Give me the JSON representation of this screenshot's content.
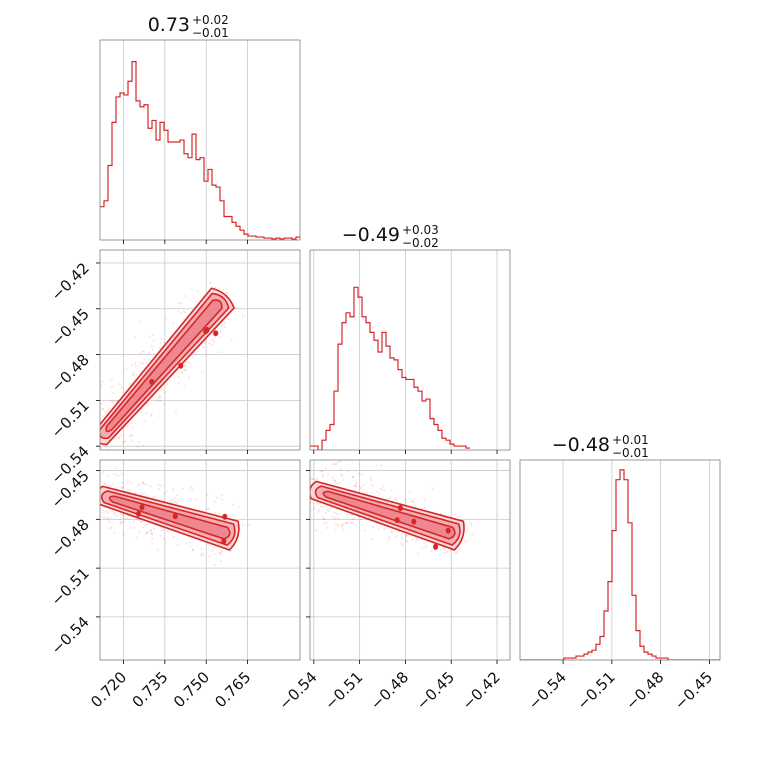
{
  "chart_data": {
    "type": "corner",
    "colors": {
      "line": "#d62728",
      "fill": "#f4a6aa",
      "fill_outer": "#fad4d6"
    },
    "grid": true,
    "parameters": [
      {
        "title_value": "0.73",
        "title_plus": "+0.02",
        "title_minus": "−0.01",
        "range": [
          0.7115,
          0.784
        ],
        "ticks": [
          0.72,
          0.735,
          0.75,
          0.765
        ],
        "tick_labels": [
          "0.720",
          "0.735",
          "0.750",
          "0.765"
        ]
      },
      {
        "title_value": "−0.49",
        "title_plus": "+0.03",
        "title_minus": "−0.02",
        "range": [
          -0.5425,
          -0.4115
        ],
        "ticks": [
          -0.54,
          -0.51,
          -0.48,
          -0.45,
          -0.42
        ],
        "tick_labels": [
          "−0.54",
          "−0.51",
          "−0.48",
          "−0.45",
          "−0.42"
        ]
      },
      {
        "title_value": "−0.48",
        "title_plus": "+0.01",
        "title_minus": "−0.01",
        "range": [
          -0.5665,
          -0.4435
        ],
        "ticks": [
          -0.54,
          -0.51,
          -0.48,
          -0.45
        ],
        "tick_labels": [
          "−0.54",
          "−0.51",
          "−0.48",
          "−0.45"
        ]
      }
    ],
    "histograms": [
      {
        "parameter": 0,
        "bin_start": 0.7115,
        "bin_width": 0.00145,
        "counts": [
          0.17,
          0.2,
          0.38,
          0.6,
          0.73,
          0.75,
          0.74,
          0.81,
          0.91,
          0.71,
          0.68,
          0.69,
          0.57,
          0.61,
          0.51,
          0.6,
          0.56,
          0.5,
          0.5,
          0.5,
          0.51,
          0.44,
          0.42,
          0.54,
          0.41,
          0.42,
          0.3,
          0.36,
          0.28,
          0.27,
          0.2,
          0.12,
          0.12,
          0.09,
          0.07,
          0.05,
          0.03,
          0.02,
          0.02,
          0.015,
          0.015,
          0.01,
          0.01,
          0.005,
          0.01,
          0.005,
          0.01,
          0.01,
          0.005,
          0.015
        ]
      },
      {
        "parameter": 1,
        "bin_start": -0.5425,
        "bin_width": 0.00262,
        "counts": [
          0.02,
          0.02,
          0.0,
          0.05,
          0.1,
          0.13,
          0.3,
          0.54,
          0.65,
          0.7,
          0.68,
          0.83,
          0.78,
          0.68,
          0.65,
          0.6,
          0.56,
          0.5,
          0.6,
          0.53,
          0.47,
          0.46,
          0.41,
          0.37,
          0.36,
          0.36,
          0.32,
          0.3,
          0.25,
          0.26,
          0.16,
          0.13,
          0.1,
          0.06,
          0.05,
          0.03,
          0.02,
          0.02,
          0.02,
          0.01
        ]
      },
      {
        "parameter": 2,
        "bin_start": -0.5665,
        "bin_width": 0.00246,
        "counts": [
          0,
          0,
          0,
          0,
          0,
          0,
          0,
          0,
          0,
          0,
          0,
          0.01,
          0.01,
          0.01,
          0.02,
          0.02,
          0.03,
          0.04,
          0.05,
          0.08,
          0.12,
          0.25,
          0.4,
          0.66,
          0.92,
          0.97,
          0.92,
          0.7,
          0.33,
          0.15,
          0.07,
          0.04,
          0.03,
          0.02,
          0.01,
          0.01,
          0.01,
          0,
          0,
          0,
          0,
          0,
          0,
          0,
          0,
          0,
          0,
          0,
          0,
          0
        ]
      }
    ],
    "pairs": [
      {
        "x_param": 0,
        "y_param": 1,
        "trend": {
          "x0": 0.7115,
          "y0": -0.535,
          "x1": 0.756,
          "y1": -0.443
        },
        "width": 0.0075,
        "spread_y": 0.01
      },
      {
        "x_param": 0,
        "y_param": 2,
        "trend": {
          "x0": 0.7115,
          "y0": -0.465,
          "x1": 0.76,
          "y1": -0.49
        },
        "width": 0.006,
        "spread_y": 0.012
      },
      {
        "x_param": 1,
        "y_param": 2,
        "trend": {
          "x0": -0.54,
          "y0": -0.462,
          "x1": -0.445,
          "y1": -0.49
        },
        "width": 0.006,
        "spread_y": 0.012
      }
    ]
  }
}
